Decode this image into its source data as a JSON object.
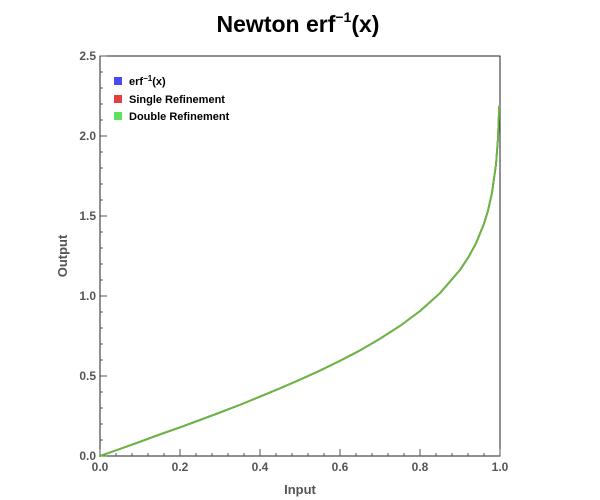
{
  "chart_data": {
    "type": "line",
    "title": {
      "main": "Newton erf",
      "sup": "−1",
      "tail": "(x)"
    },
    "xlabel": "Input",
    "ylabel": "Output",
    "xlim": [
      0,
      1
    ],
    "ylim": [
      0,
      2.5
    ],
    "xticks": [
      "0.0",
      "0.2",
      "0.4",
      "0.6",
      "0.8",
      "1.0"
    ],
    "xtick_values": [
      0,
      0.2,
      0.4,
      0.6,
      0.8,
      1.0
    ],
    "yticks": [
      "0.0",
      "0.5",
      "1.0",
      "1.5",
      "2.0",
      "2.5"
    ],
    "ytick_values": [
      0,
      0.5,
      1.0,
      1.5,
      2.0,
      2.5
    ],
    "legend_position": "top-left",
    "grid": false,
    "series": [
      {
        "legend": {
          "main": "erf",
          "sup": "−1",
          "tail": "(x)"
        },
        "color": "#4a4af0",
        "x": [
          0,
          0.05,
          0.1,
          0.15,
          0.2,
          0.25,
          0.3,
          0.35,
          0.4,
          0.45,
          0.5,
          0.55,
          0.6,
          0.65,
          0.7,
          0.75,
          0.8,
          0.85,
          0.9,
          0.92,
          0.94,
          0.96,
          0.97,
          0.98,
          0.99,
          0.995,
          0.998
        ],
        "y": [
          0,
          0.044,
          0.089,
          0.135,
          0.179,
          0.225,
          0.272,
          0.32,
          0.371,
          0.423,
          0.477,
          0.534,
          0.595,
          0.66,
          0.733,
          0.813,
          0.906,
          1.018,
          1.163,
          1.238,
          1.329,
          1.452,
          1.534,
          1.645,
          1.822,
          1.985,
          2.185
        ]
      },
      {
        "legend": {
          "main": "Single Refinement"
        },
        "color": "#e04040",
        "x": [
          0,
          0.05,
          0.1,
          0.15,
          0.2,
          0.25,
          0.3,
          0.35,
          0.4,
          0.45,
          0.5,
          0.55,
          0.6,
          0.65,
          0.7,
          0.75,
          0.8,
          0.85,
          0.9,
          0.92,
          0.94,
          0.96,
          0.97,
          0.98,
          0.99,
          0.995,
          0.998
        ],
        "y": [
          0,
          0.044,
          0.089,
          0.135,
          0.179,
          0.225,
          0.272,
          0.32,
          0.371,
          0.423,
          0.477,
          0.534,
          0.595,
          0.66,
          0.733,
          0.813,
          0.906,
          1.018,
          1.163,
          1.238,
          1.329,
          1.452,
          1.534,
          1.645,
          1.822,
          1.985,
          2.185
        ]
      },
      {
        "legend": {
          "main": "Double Refinement"
        },
        "color": "#5fbf3a",
        "x": [
          0,
          0.05,
          0.1,
          0.15,
          0.2,
          0.25,
          0.3,
          0.35,
          0.4,
          0.45,
          0.5,
          0.55,
          0.6,
          0.65,
          0.7,
          0.75,
          0.8,
          0.85,
          0.9,
          0.92,
          0.94,
          0.96,
          0.97,
          0.98,
          0.99,
          0.995,
          0.998
        ],
        "y": [
          0,
          0.044,
          0.089,
          0.135,
          0.179,
          0.225,
          0.272,
          0.32,
          0.371,
          0.423,
          0.477,
          0.534,
          0.595,
          0.66,
          0.733,
          0.813,
          0.906,
          1.018,
          1.163,
          1.238,
          1.329,
          1.452,
          1.534,
          1.645,
          1.822,
          1.985,
          2.185
        ]
      }
    ],
    "legend_swatch_colors": [
      "#4a4af0",
      "#e04040",
      "#5fe05f"
    ],
    "axis_color": "#555555"
  }
}
